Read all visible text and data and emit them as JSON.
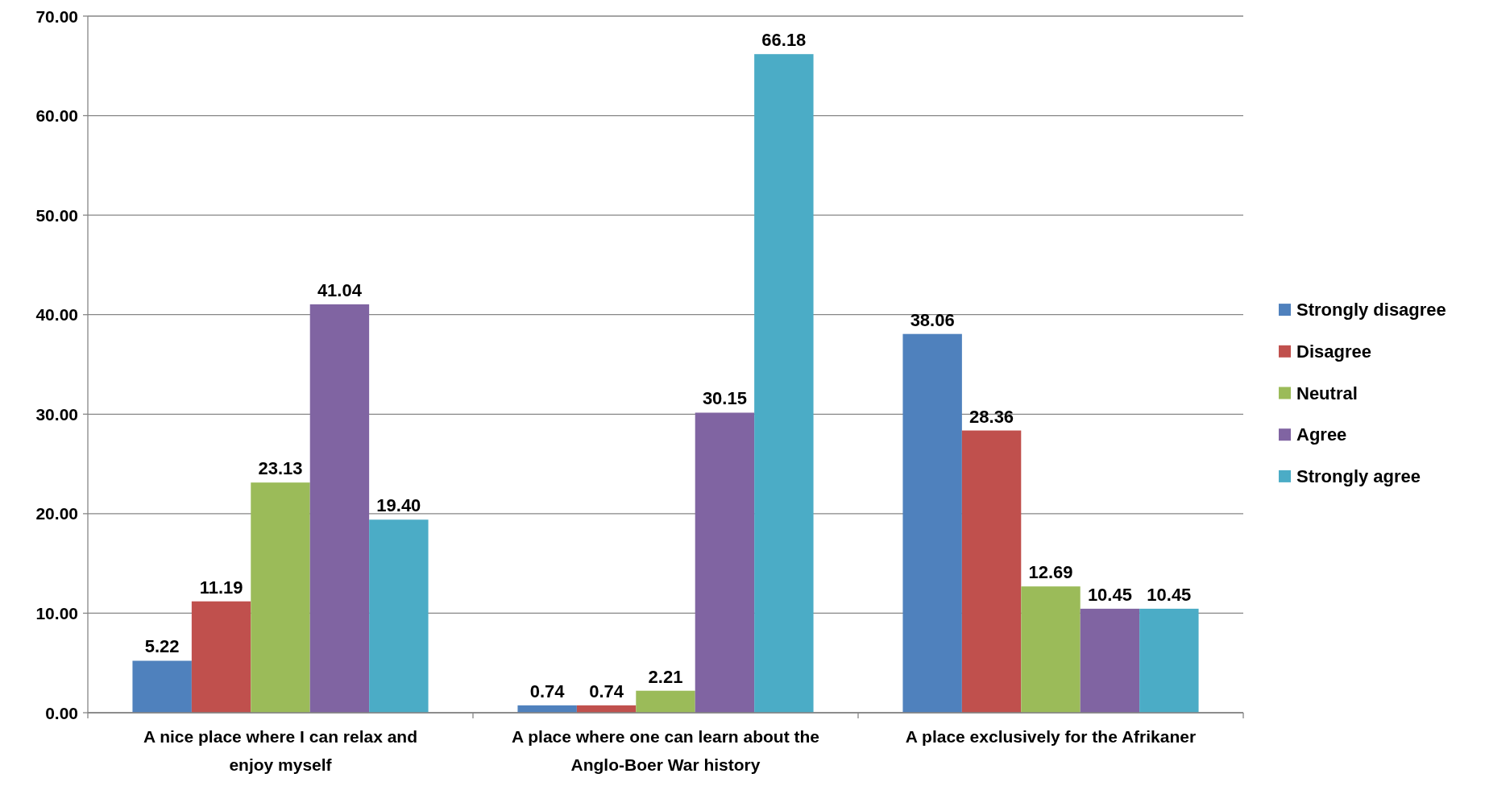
{
  "chart_data": {
    "type": "bar",
    "categories": [
      "A nice place where I can relax and enjoy myself",
      "A place where one can learn about the Anglo-Boer War history",
      "A place exclusively for the Afrikaner"
    ],
    "series": [
      {
        "name": "Strongly disagree",
        "color": "#4f81bd",
        "values": [
          5.22,
          0.74,
          38.06
        ],
        "value_labels": [
          "5.22",
          "0.74",
          "38.06"
        ]
      },
      {
        "name": "Disagree",
        "color": "#c0504d",
        "values": [
          11.19,
          0.74,
          28.36
        ],
        "value_labels": [
          "11.19",
          "0.74",
          "28.36"
        ]
      },
      {
        "name": "Neutral",
        "color": "#9bbb59",
        "values": [
          23.13,
          2.21,
          12.69
        ],
        "value_labels": [
          "23.13",
          "2.21",
          "12.69"
        ]
      },
      {
        "name": "Agree",
        "color": "#8064a2",
        "values": [
          41.04,
          30.15,
          10.45
        ],
        "value_labels": [
          "41.04",
          "30.15",
          "10.45"
        ]
      },
      {
        "name": "Strongly agree",
        "color": "#4bacc6",
        "values": [
          19.4,
          66.18,
          10.45
        ],
        "value_labels": [
          "19.40",
          "66.18",
          "10.45"
        ]
      }
    ],
    "ylim": [
      0,
      70
    ],
    "yticks": [
      {
        "value": 0,
        "label": "0.00"
      },
      {
        "value": 10,
        "label": "10.00"
      },
      {
        "value": 20,
        "label": "20.00"
      },
      {
        "value": 30,
        "label": "30.00"
      },
      {
        "value": 40,
        "label": "40.00"
      },
      {
        "value": 50,
        "label": "50.00"
      },
      {
        "value": 60,
        "label": "60.00"
      },
      {
        "value": 70,
        "label": "70.00"
      }
    ],
    "grid": "y",
    "legend": "right"
  }
}
